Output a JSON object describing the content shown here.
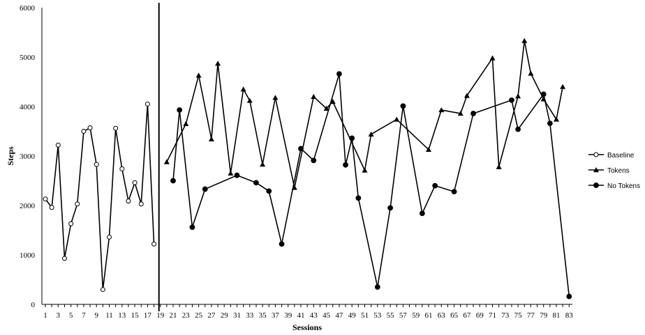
{
  "chart_data": {
    "type": "line",
    "title": "",
    "xlabel": "Sessions",
    "ylabel": "Steps",
    "ylim": [
      0,
      6000
    ],
    "xlim": [
      1,
      83
    ],
    "yticks": [
      0,
      1000,
      2000,
      3000,
      4000,
      5000,
      6000
    ],
    "xticks": [
      1,
      3,
      5,
      7,
      9,
      11,
      13,
      15,
      17,
      19,
      21,
      23,
      25,
      27,
      29,
      31,
      33,
      35,
      37,
      39,
      41,
      43,
      45,
      47,
      49,
      51,
      53,
      55,
      57,
      59,
      61,
      63,
      65,
      67,
      69,
      71,
      73,
      75,
      77,
      79,
      81,
      83
    ],
    "phase_line_x": 19,
    "grid": false,
    "legend_position": "right",
    "series": [
      {
        "name": "Baseline",
        "marker": "open-circle",
        "x": [
          1,
          2,
          3,
          4,
          5,
          6,
          7,
          8,
          9,
          10,
          11,
          12,
          13,
          14,
          15,
          16,
          17,
          18
        ],
        "y": [
          2130,
          1960,
          3220,
          930,
          1630,
          2030,
          3500,
          3570,
          2830,
          300,
          1360,
          3560,
          2740,
          2090,
          2460,
          2030,
          4050,
          1220
        ]
      },
      {
        "name": "Tokens",
        "marker": "triangle",
        "x": [
          20,
          23,
          25,
          27,
          28,
          30,
          32,
          33,
          35,
          37,
          40,
          43,
          45,
          46,
          51,
          52,
          56,
          61,
          63,
          66,
          67,
          71,
          72,
          75,
          76,
          77,
          79,
          81,
          82
        ],
        "y": [
          2880,
          3650,
          4630,
          3340,
          4870,
          2650,
          4350,
          4120,
          2830,
          4180,
          2360,
          4200,
          3960,
          4100,
          2710,
          3440,
          3740,
          3130,
          3930,
          3860,
          4220,
          4980,
          2780,
          4210,
          5330,
          4670,
          4150,
          3740,
          4400
        ]
      },
      {
        "name": "No Tokens",
        "marker": "filled-circle",
        "x": [
          21,
          22,
          24,
          26,
          31,
          34,
          36,
          38,
          41,
          43,
          47,
          48,
          49,
          50,
          53,
          55,
          57,
          60,
          62,
          65,
          68,
          74,
          75,
          79,
          80,
          83
        ],
        "y": [
          2500,
          3930,
          1560,
          2330,
          2610,
          2460,
          2290,
          1220,
          3150,
          2910,
          4660,
          2820,
          3360,
          2150,
          350,
          1950,
          4010,
          1840,
          2400,
          2280,
          3860,
          4130,
          3540,
          4250,
          3660,
          160
        ]
      }
    ]
  }
}
